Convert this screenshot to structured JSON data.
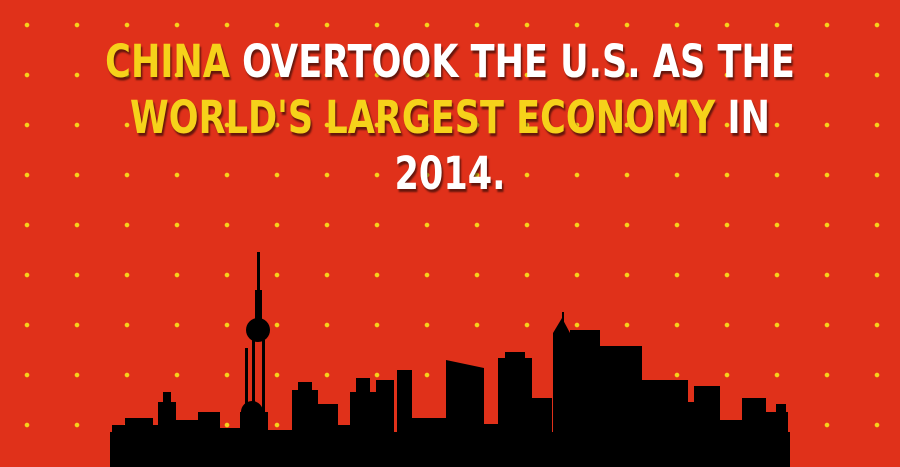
{
  "headline": {
    "line1": {
      "accent": "CHINA",
      "rest": " OVERTOOK THE U.S. AS THE"
    },
    "line2": {
      "accent": "WORLD'S LARGEST ECONOMY",
      "rest": " IN"
    },
    "line3": {
      "text": "2014."
    }
  },
  "colors": {
    "background": "#e0311a",
    "star": "#f6d21a",
    "text": "#ffffff",
    "accent": "#f6d21a",
    "silhouette": "#000000"
  },
  "graphics": {
    "background_pattern": "yellow-star-grid",
    "foreground": "city-skyline-silhouette"
  }
}
